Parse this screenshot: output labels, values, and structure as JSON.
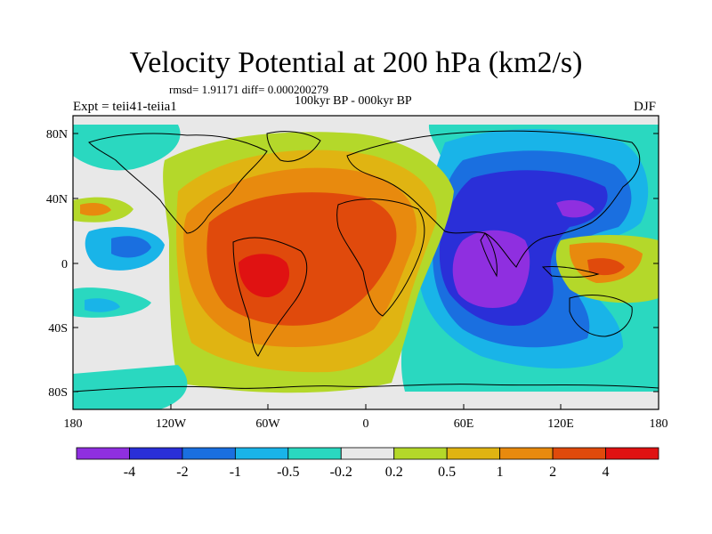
{
  "title": "Velocity Potential at 200 hPa (km2/s)",
  "stats_text": "rmsd= 1.91171 diff= 0.000200279",
  "period_text": "100kyr BP - 000kyr BP",
  "experiment_text": "Expt = teii41-teiia1",
  "season": "DJF",
  "lat_labels": [
    "80N",
    "40N",
    "0",
    "40S",
    "80S"
  ],
  "lon_labels": [
    "180",
    "120W",
    "60W",
    "0",
    "60E",
    "120E",
    "180"
  ],
  "colorbar": {
    "colors": [
      "#8f2fe0",
      "#2a2fd8",
      "#1a6fe0",
      "#19b4e8",
      "#2ad8c0",
      "#e8e8e8",
      "#b4d82a",
      "#e0b412",
      "#e88a0e",
      "#e04a0c",
      "#e01212"
    ],
    "labels": [
      "-4",
      "-2",
      "-1",
      "-0.5",
      "-0.2",
      "0.2",
      "0.5",
      "1",
      "2",
      "4"
    ]
  },
  "colors": {
    "background_map": "#e8e8e8",
    "coast": "#000000"
  }
}
